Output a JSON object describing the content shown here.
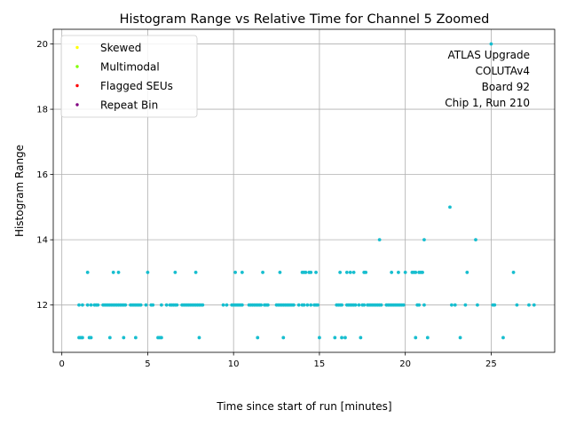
{
  "chart_data": {
    "type": "scatter",
    "title": "Histogram Range vs Relative Time for Channel 5 Zoomed",
    "xlabel": "Time since start of run [minutes]",
    "ylabel": "Histogram Range",
    "xlim": [
      -0.5,
      28.7
    ],
    "ylim": [
      10.55,
      20.45
    ],
    "xticks": [
      0,
      5,
      10,
      15,
      20,
      25
    ],
    "yticks": [
      12,
      14,
      16,
      18,
      20
    ],
    "grid": true,
    "legend_position": "upper-left",
    "legend": [
      {
        "label": "Skewed",
        "color": "#ffff00"
      },
      {
        "label": "Multimodal",
        "color": "#7fff00"
      },
      {
        "label": "Flagged SEUs",
        "color": "#ff0000"
      },
      {
        "label": "Repeat Bin",
        "color": "#800080"
      }
    ],
    "annotation": [
      "ATLAS Upgrade",
      "COLUTAv4",
      "Board 92",
      "Chip 1, Run 210"
    ],
    "point_color": "#17becf",
    "series": [
      {
        "points": [
          [
            1.0,
            12
          ],
          [
            1.2,
            12
          ],
          [
            1.5,
            12
          ],
          [
            1.7,
            12
          ],
          [
            1.9,
            12
          ],
          [
            2.0,
            12
          ],
          [
            2.1,
            12
          ],
          [
            2.4,
            12
          ],
          [
            2.5,
            12
          ],
          [
            2.6,
            12
          ],
          [
            2.7,
            12
          ],
          [
            2.8,
            12
          ],
          [
            2.9,
            12
          ],
          [
            3.0,
            12
          ],
          [
            3.1,
            12
          ],
          [
            3.2,
            12
          ],
          [
            3.3,
            12
          ],
          [
            3.4,
            12
          ],
          [
            3.5,
            12
          ],
          [
            3.6,
            12
          ],
          [
            3.7,
            12
          ],
          [
            4.0,
            12
          ],
          [
            4.1,
            12
          ],
          [
            4.2,
            12
          ],
          [
            4.3,
            12
          ],
          [
            4.4,
            12
          ],
          [
            4.5,
            12
          ],
          [
            4.6,
            12
          ],
          [
            4.9,
            12
          ],
          [
            5.2,
            12
          ],
          [
            5.3,
            12
          ],
          [
            5.8,
            12
          ],
          [
            6.1,
            12
          ],
          [
            6.3,
            12
          ],
          [
            6.4,
            12
          ],
          [
            6.5,
            12
          ],
          [
            6.6,
            12
          ],
          [
            6.7,
            12
          ],
          [
            7.0,
            12
          ],
          [
            7.1,
            12
          ],
          [
            7.2,
            12
          ],
          [
            7.3,
            12
          ],
          [
            7.4,
            12
          ],
          [
            7.5,
            12
          ],
          [
            7.6,
            12
          ],
          [
            7.7,
            12
          ],
          [
            7.8,
            12
          ],
          [
            7.9,
            12
          ],
          [
            8.0,
            12
          ],
          [
            8.1,
            12
          ],
          [
            8.2,
            12
          ],
          [
            9.4,
            12
          ],
          [
            9.6,
            12
          ],
          [
            9.9,
            12
          ],
          [
            10.0,
            12
          ],
          [
            10.1,
            12
          ],
          [
            10.2,
            12
          ],
          [
            10.3,
            12
          ],
          [
            10.4,
            12
          ],
          [
            10.5,
            12
          ],
          [
            10.9,
            12
          ],
          [
            11.0,
            12
          ],
          [
            11.1,
            12
          ],
          [
            11.2,
            12
          ],
          [
            11.3,
            12
          ],
          [
            11.4,
            12
          ],
          [
            11.5,
            12
          ],
          [
            11.6,
            12
          ],
          [
            11.8,
            12
          ],
          [
            11.9,
            12
          ],
          [
            12.0,
            12
          ],
          [
            12.5,
            12
          ],
          [
            12.6,
            12
          ],
          [
            12.7,
            12
          ],
          [
            12.8,
            12
          ],
          [
            12.9,
            12
          ],
          [
            13.0,
            12
          ],
          [
            13.1,
            12
          ],
          [
            13.2,
            12
          ],
          [
            13.3,
            12
          ],
          [
            13.4,
            12
          ],
          [
            13.5,
            12
          ],
          [
            13.8,
            12
          ],
          [
            14.0,
            12
          ],
          [
            14.1,
            12
          ],
          [
            14.3,
            12
          ],
          [
            14.5,
            12
          ],
          [
            14.7,
            12
          ],
          [
            14.8,
            12
          ],
          [
            14.9,
            12
          ],
          [
            16.0,
            12
          ],
          [
            16.1,
            12
          ],
          [
            16.2,
            12
          ],
          [
            16.3,
            12
          ],
          [
            16.6,
            12
          ],
          [
            16.7,
            12
          ],
          [
            16.8,
            12
          ],
          [
            16.9,
            12
          ],
          [
            17.0,
            12
          ],
          [
            17.1,
            12
          ],
          [
            17.3,
            12
          ],
          [
            17.5,
            12
          ],
          [
            17.6,
            12
          ],
          [
            17.8,
            12
          ],
          [
            17.9,
            12
          ],
          [
            18.0,
            12
          ],
          [
            18.1,
            12
          ],
          [
            18.2,
            12
          ],
          [
            18.3,
            12
          ],
          [
            18.4,
            12
          ],
          [
            18.5,
            12
          ],
          [
            18.6,
            12
          ],
          [
            18.9,
            12
          ],
          [
            19.0,
            12
          ],
          [
            19.1,
            12
          ],
          [
            19.2,
            12
          ],
          [
            19.3,
            12
          ],
          [
            19.4,
            12
          ],
          [
            19.5,
            12
          ],
          [
            19.6,
            12
          ],
          [
            19.7,
            12
          ],
          [
            19.8,
            12
          ],
          [
            19.9,
            12
          ],
          [
            20.7,
            12
          ],
          [
            20.8,
            12
          ],
          [
            21.1,
            12
          ],
          [
            22.7,
            12
          ],
          [
            22.9,
            12
          ],
          [
            23.5,
            12
          ],
          [
            24.2,
            12
          ],
          [
            25.1,
            12
          ],
          [
            25.2,
            12
          ],
          [
            26.5,
            12
          ],
          [
            27.2,
            12
          ],
          [
            27.5,
            12
          ],
          [
            1.5,
            13
          ],
          [
            3.0,
            13
          ],
          [
            3.3,
            13
          ],
          [
            5.0,
            13
          ],
          [
            6.6,
            13
          ],
          [
            7.8,
            13
          ],
          [
            10.1,
            13
          ],
          [
            10.5,
            13
          ],
          [
            11.7,
            13
          ],
          [
            12.7,
            13
          ],
          [
            14.0,
            13
          ],
          [
            14.1,
            13
          ],
          [
            14.2,
            13
          ],
          [
            14.4,
            13
          ],
          [
            14.5,
            13
          ],
          [
            14.8,
            13
          ],
          [
            16.2,
            13
          ],
          [
            16.6,
            13
          ],
          [
            16.8,
            13
          ],
          [
            17.0,
            13
          ],
          [
            17.6,
            13
          ],
          [
            17.7,
            13
          ],
          [
            19.2,
            13
          ],
          [
            19.6,
            13
          ],
          [
            20.0,
            13
          ],
          [
            20.4,
            13
          ],
          [
            20.5,
            13
          ],
          [
            20.6,
            13
          ],
          [
            20.8,
            13
          ],
          [
            20.9,
            13
          ],
          [
            21.0,
            13
          ],
          [
            23.6,
            13
          ],
          [
            26.3,
            13
          ],
          [
            1.0,
            11
          ],
          [
            1.1,
            11
          ],
          [
            1.2,
            11
          ],
          [
            1.6,
            11
          ],
          [
            1.7,
            11
          ],
          [
            2.8,
            11
          ],
          [
            3.6,
            11
          ],
          [
            4.3,
            11
          ],
          [
            5.6,
            11
          ],
          [
            5.7,
            11
          ],
          [
            5.8,
            11
          ],
          [
            8.0,
            11
          ],
          [
            11.4,
            11
          ],
          [
            12.9,
            11
          ],
          [
            15.0,
            11
          ],
          [
            15.9,
            11
          ],
          [
            16.3,
            11
          ],
          [
            16.5,
            11
          ],
          [
            17.4,
            11
          ],
          [
            20.6,
            11
          ],
          [
            21.3,
            11
          ],
          [
            23.2,
            11
          ],
          [
            25.7,
            11
          ],
          [
            18.5,
            14
          ],
          [
            21.1,
            14
          ],
          [
            24.1,
            14
          ],
          [
            22.6,
            15
          ],
          [
            25.0,
            20
          ]
        ]
      }
    ]
  }
}
